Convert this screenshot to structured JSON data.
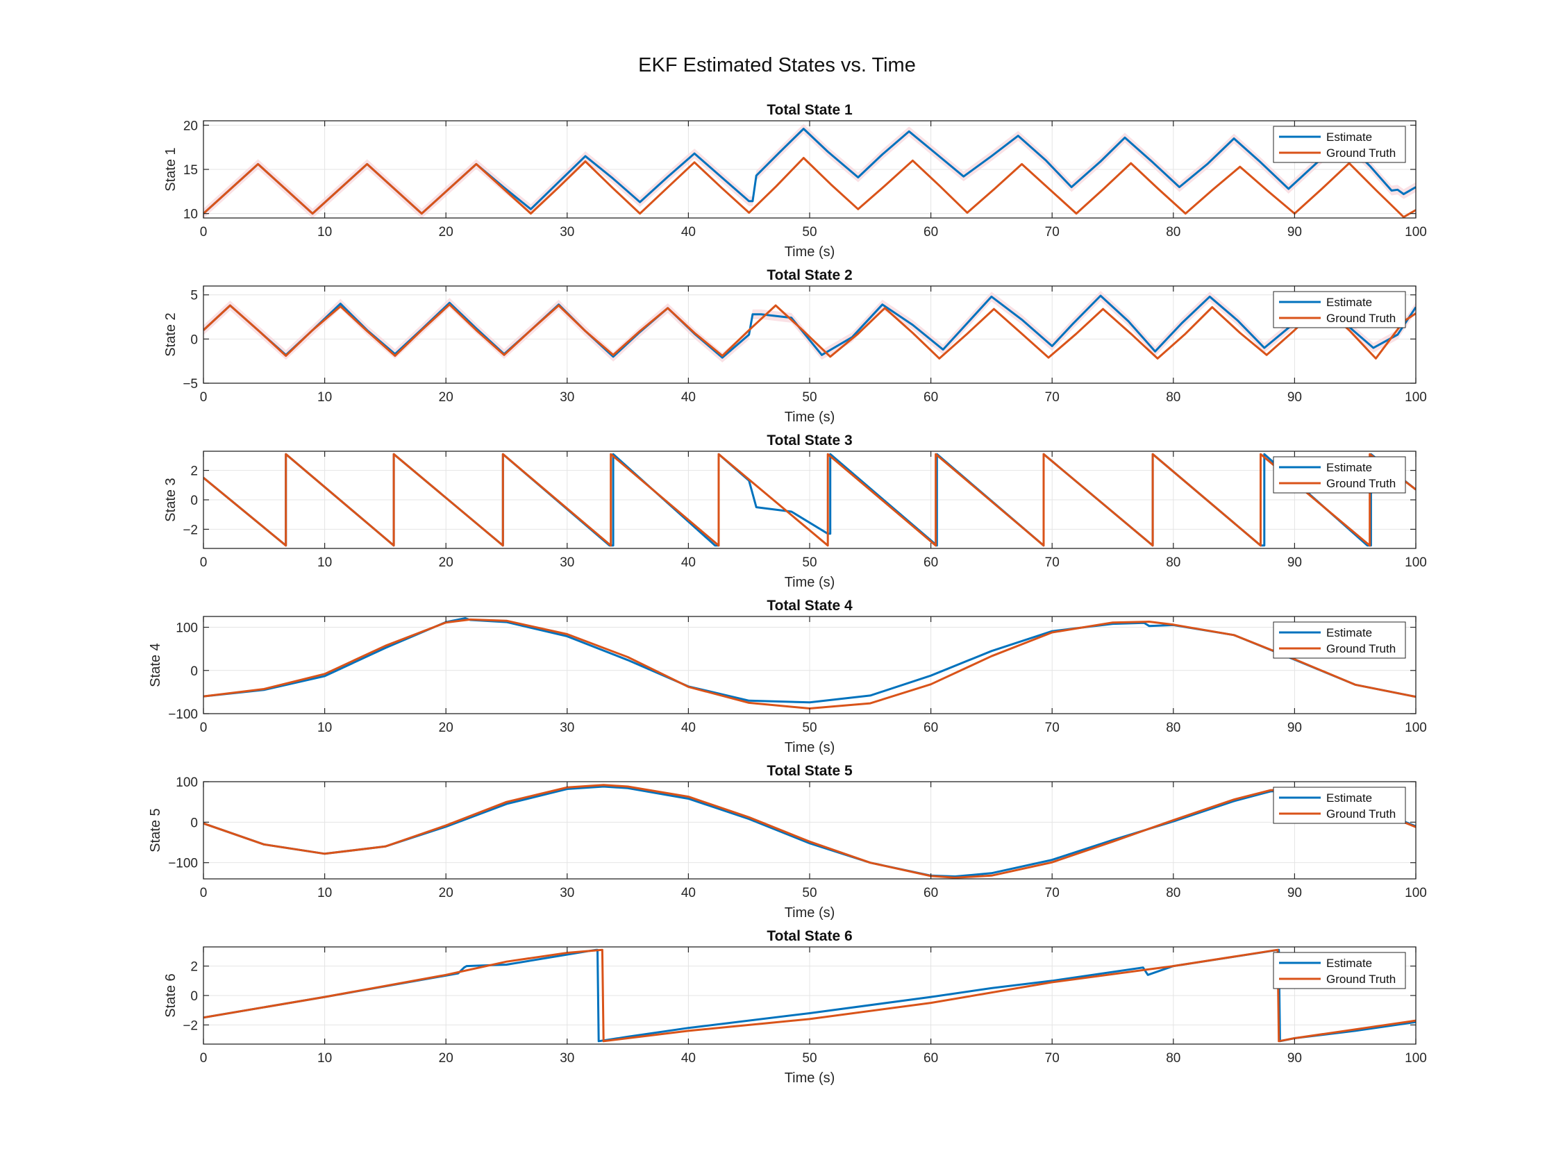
{
  "figure": {
    "title": "EKF Estimated States vs. Time",
    "colors": {
      "estimate": "#0072BD",
      "ground_truth": "#D95319",
      "band": "#F8D7DC",
      "grid": "#E4E4E4",
      "axis": "#262626"
    }
  },
  "chart_data": [
    {
      "type": "line",
      "title": "Total State 1",
      "xlabel": "Time (s)",
      "ylabel": "State 1",
      "xlim": [
        0,
        100
      ],
      "ylim": [
        9.5,
        20.5
      ],
      "xticks": [
        0,
        10,
        20,
        30,
        40,
        50,
        60,
        70,
        80,
        90,
        100
      ],
      "yticks": [
        10,
        15,
        20
      ],
      "grid": true,
      "legend": "top-right",
      "confidence_band": true,
      "series": [
        {
          "name": "Estimate",
          "x": [
            0,
            2.25,
            4.5,
            6.75,
            9,
            11.25,
            13.5,
            15.75,
            18,
            20.25,
            22.5,
            24.75,
            27,
            29.25,
            31.5,
            33.75,
            36,
            38.25,
            40.5,
            42.75,
            45,
            45.3,
            45.6,
            47.5,
            49.5,
            51.5,
            54,
            56,
            58.2,
            60.5,
            62.7,
            65,
            67.2,
            69.5,
            71.6,
            74,
            76,
            78.3,
            80.5,
            82.8,
            85,
            87.2,
            89.5,
            91.8,
            94,
            96.2,
            98,
            98.5,
            99,
            100
          ],
          "y": [
            10,
            12.8,
            15.6,
            12.8,
            10,
            12.8,
            15.6,
            12.8,
            10,
            12.8,
            15.6,
            13,
            10.5,
            13.5,
            16.5,
            14,
            11.3,
            14.1,
            16.8,
            14.1,
            11.4,
            11.4,
            14.3,
            16.9,
            19.6,
            17,
            14.1,
            16.7,
            19.3,
            16.7,
            14.2,
            16.5,
            18.8,
            16,
            13,
            15.9,
            18.6,
            15.8,
            13,
            15.6,
            18.5,
            15.8,
            12.8,
            15.7,
            18.4,
            15.4,
            12.6,
            12.7,
            12.2,
            13
          ]
        },
        {
          "name": "Ground Truth",
          "x": [
            0,
            2.25,
            4.5,
            6.75,
            9,
            11.25,
            13.5,
            15.75,
            18,
            20.25,
            22.5,
            24.75,
            27,
            29.25,
            31.5,
            33.75,
            36,
            38.25,
            40.5,
            42.75,
            45,
            47.25,
            49.5,
            51.75,
            54,
            56.25,
            58.5,
            60.75,
            63,
            65.25,
            67.5,
            69.75,
            72,
            74.25,
            76.5,
            78.75,
            81,
            83.25,
            85.5,
            87.75,
            90,
            92.25,
            94.5,
            96.75,
            99,
            100
          ],
          "y": [
            10,
            12.8,
            15.6,
            12.8,
            10,
            12.8,
            15.6,
            12.8,
            10,
            12.8,
            15.6,
            12.8,
            10,
            12.9,
            15.9,
            12.9,
            10,
            12.9,
            15.8,
            12.9,
            10.1,
            13.1,
            16.3,
            13.3,
            10.5,
            13.2,
            16,
            13.1,
            10.1,
            12.8,
            15.6,
            12.8,
            10,
            12.8,
            15.7,
            12.8,
            10,
            12.7,
            15.3,
            12.6,
            10,
            12.8,
            15.7,
            12.6,
            9.6,
            10.4
          ]
        }
      ]
    },
    {
      "type": "line",
      "title": "Total State 2",
      "xlabel": "Time (s)",
      "ylabel": "State 2",
      "xlim": [
        0,
        100
      ],
      "ylim": [
        -5,
        6
      ],
      "xticks": [
        0,
        10,
        20,
        30,
        40,
        50,
        60,
        70,
        80,
        90,
        100
      ],
      "yticks": [
        -5,
        0,
        5
      ],
      "grid": true,
      "legend": "top-right",
      "confidence_band": true,
      "series": [
        {
          "name": "Estimate",
          "x": [
            0,
            2.2,
            4.5,
            6.8,
            9,
            11.3,
            13.5,
            15.8,
            18,
            20.3,
            22.5,
            24.8,
            27,
            29.3,
            31.5,
            33.8,
            36,
            38.3,
            40.5,
            42.8,
            45,
            45.3,
            46,
            48.5,
            51,
            53.5,
            56,
            58.5,
            61,
            63,
            65,
            67.5,
            70,
            71.7,
            74,
            76.3,
            78.5,
            80.7,
            83,
            85.3,
            87.5,
            89.7,
            92,
            94.3,
            96.5,
            98.5,
            100
          ],
          "y": [
            1,
            3.8,
            1,
            -1.8,
            1,
            4,
            1,
            -1.7,
            1.1,
            4.1,
            1.2,
            -1.7,
            1,
            3.9,
            0.9,
            -2,
            0.8,
            3.5,
            0.6,
            -2.1,
            0.5,
            2.8,
            2.8,
            2.4,
            -1.8,
            0.2,
            3.9,
            1.6,
            -1.2,
            1.8,
            4.8,
            2.2,
            -0.8,
            1.7,
            4.9,
            2,
            -1.4,
            1.8,
            4.8,
            2.1,
            -1,
            1.5,
            4.5,
            1.6,
            -1,
            0.5,
            3.6
          ]
        },
        {
          "name": "Ground Truth",
          "x": [
            0,
            2.2,
            4.5,
            6.8,
            9,
            11.3,
            13.5,
            15.8,
            18,
            20.3,
            22.5,
            24.8,
            27,
            29.3,
            31.5,
            33.8,
            36,
            38.3,
            40.5,
            42.8,
            45,
            47.2,
            49.5,
            51.7,
            54,
            56.2,
            58.5,
            60.7,
            63,
            65.2,
            67.5,
            69.7,
            72,
            74.2,
            76.5,
            78.7,
            81,
            83.2,
            85.5,
            87.7,
            90,
            92.2,
            94.5,
            96.7,
            99,
            100
          ],
          "y": [
            1,
            3.8,
            1,
            -1.9,
            1,
            3.7,
            0.9,
            -1.9,
            1,
            3.9,
            1,
            -1.8,
            1,
            3.8,
            0.9,
            -1.8,
            0.9,
            3.5,
            0.7,
            -1.9,
            1,
            3.8,
            0.9,
            -2,
            0.6,
            3.5,
            0.7,
            -2.2,
            0.6,
            3.4,
            0.6,
            -2.1,
            0.6,
            3.4,
            0.6,
            -2.2,
            0.6,
            3.6,
            0.7,
            -1.8,
            1,
            3.9,
            1,
            -2.2,
            2,
            2.9
          ]
        }
      ]
    },
    {
      "type": "line",
      "title": "Total State 3",
      "xlabel": "Time (s)",
      "ylabel": "State 3",
      "xlim": [
        0,
        100
      ],
      "ylim": [
        -3.3,
        3.3
      ],
      "xticks": [
        0,
        10,
        20,
        30,
        40,
        50,
        60,
        70,
        80,
        90,
        100
      ],
      "yticks": [
        -2,
        0,
        2
      ],
      "grid": true,
      "legend": "top-right",
      "series": [
        {
          "name": "Estimate",
          "x": [
            0,
            6.8,
            6.8,
            15.7,
            15.7,
            24.7,
            24.7,
            33.5,
            33.5,
            33.8,
            33.8,
            42.2,
            42.2,
            42.5,
            42.5,
            45,
            45.6,
            48.5,
            51.5,
            51.5,
            51.7,
            51.7,
            60.5,
            60.5,
            69.3,
            69.3,
            78.3,
            78.3,
            87.2,
            87.2,
            87.5,
            87.5,
            96,
            96,
            96.3,
            96.3,
            100
          ],
          "y": [
            1.5,
            -3.1,
            3.1,
            -3.1,
            3.1,
            -3.1,
            3.1,
            -3.1,
            -3.1,
            -3.1,
            3.1,
            -3.1,
            -3.1,
            -3.1,
            3.1,
            1.3,
            -0.5,
            -0.8,
            -2.3,
            -2.3,
            -2.3,
            3.1,
            -3.1,
            3.1,
            -3.1,
            3.1,
            -3.1,
            3.1,
            -3.1,
            -3.1,
            -3.1,
            3.1,
            -3.1,
            -3.1,
            -3.1,
            3.1,
            0.7
          ]
        },
        {
          "name": "Ground Truth",
          "x": [
            0,
            6.8,
            6.8,
            15.7,
            15.7,
            24.7,
            24.7,
            33.6,
            33.6,
            42.5,
            42.5,
            51.5,
            51.5,
            60.4,
            60.4,
            69.3,
            69.3,
            78.3,
            78.3,
            87.2,
            87.2,
            96.2,
            96.2,
            100
          ],
          "y": [
            1.5,
            -3.1,
            3.1,
            -3.1,
            3.1,
            -3.1,
            3.1,
            -3.1,
            3.1,
            -3.1,
            3.1,
            -3.1,
            3.1,
            -3.1,
            3.1,
            -3.1,
            3.1,
            -3.1,
            3.1,
            -3.1,
            3.1,
            -3.1,
            3.1,
            0.7
          ]
        }
      ]
    },
    {
      "type": "line",
      "title": "Total State 4",
      "xlabel": "Time (s)",
      "ylabel": "State 4",
      "xlim": [
        0,
        100
      ],
      "ylim": [
        -100,
        125
      ],
      "xticks": [
        0,
        10,
        20,
        30,
        40,
        50,
        60,
        70,
        80,
        90,
        100
      ],
      "yticks": [
        -100,
        0,
        100
      ],
      "grid": true,
      "legend": "top-right",
      "series": [
        {
          "name": "Estimate",
          "x": [
            0,
            5,
            10,
            15,
            20,
            21.6,
            22,
            25,
            30,
            35,
            40,
            45,
            50,
            55,
            60,
            65,
            70,
            75,
            77.6,
            78,
            80,
            85,
            90,
            95,
            100
          ],
          "y": [
            -60,
            -45,
            -13,
            52,
            112,
            121,
            117,
            112,
            79,
            24,
            -37,
            -70,
            -74,
            -58,
            -12,
            45,
            91,
            108,
            110,
            103,
            105,
            82,
            25,
            -33,
            -61
          ]
        },
        {
          "name": "Ground Truth",
          "x": [
            0,
            5,
            10,
            15,
            20,
            22,
            25,
            30,
            35,
            40,
            45,
            50,
            55,
            60,
            65,
            70,
            75,
            78,
            80,
            85,
            90,
            95,
            100
          ],
          "y": [
            -60,
            -43,
            -8,
            57,
            111,
            118,
            115,
            84,
            31,
            -38,
            -75,
            -88,
            -76,
            -32,
            33,
            88,
            111,
            113,
            106,
            82,
            26,
            -33,
            -61
          ]
        }
      ]
    },
    {
      "type": "line",
      "title": "Total State 5",
      "xlabel": "Time (s)",
      "ylabel": "State 5",
      "xlim": [
        0,
        100
      ],
      "ylim": [
        -140,
        100
      ],
      "xticks": [
        0,
        10,
        20,
        30,
        40,
        50,
        60,
        70,
        80,
        90,
        100
      ],
      "yticks": [
        -100,
        0,
        100
      ],
      "grid": true,
      "legend": "top-right",
      "series": [
        {
          "name": "Estimate",
          "x": [
            0,
            5,
            10,
            15,
            20,
            25,
            30,
            33,
            35,
            40,
            45,
            50,
            55,
            60,
            62,
            65,
            70,
            75,
            80,
            85,
            88,
            90,
            95,
            100
          ],
          "y": [
            -3,
            -55,
            -78,
            -60,
            -11,
            45,
            82,
            88,
            84,
            58,
            8,
            -52,
            -100,
            -132,
            -134,
            -126,
            -93,
            -44,
            2,
            52,
            76,
            80,
            50,
            -10
          ]
        },
        {
          "name": "Ground Truth",
          "x": [
            0,
            5,
            10,
            15,
            20,
            25,
            30,
            33,
            35,
            40,
            45,
            50,
            55,
            60,
            62,
            65,
            70,
            75,
            80,
            85,
            88,
            90,
            95,
            100
          ],
          "y": [
            -3,
            -55,
            -78,
            -60,
            -8,
            50,
            86,
            92,
            88,
            63,
            12,
            -48,
            -100,
            -133,
            -137,
            -132,
            -99,
            -48,
            5,
            56,
            79,
            80,
            48,
            -12
          ]
        }
      ]
    },
    {
      "type": "line",
      "title": "Total State 6",
      "xlabel": "Time (s)",
      "ylabel": "State 6",
      "xlim": [
        0,
        100
      ],
      "ylim": [
        -3.3,
        3.3
      ],
      "xticks": [
        0,
        10,
        20,
        30,
        40,
        50,
        60,
        70,
        80,
        90,
        100
      ],
      "yticks": [
        -2,
        0,
        2
      ],
      "grid": true,
      "legend": "top-right",
      "series": [
        {
          "name": "Estimate",
          "x": [
            0,
            10,
            21,
            21.5,
            21.7,
            25,
            32.4,
            32.5,
            32.6,
            35,
            40,
            50,
            60,
            65,
            70,
            77.5,
            77.9,
            80,
            88.7,
            88.8,
            90,
            95,
            100
          ],
          "y": [
            -1.5,
            -0.1,
            1.5,
            1.9,
            2.0,
            2.1,
            3.1,
            3.1,
            -3.1,
            -2.8,
            -2.2,
            -1.2,
            -0.1,
            0.5,
            1.0,
            1.9,
            1.4,
            2.0,
            3.1,
            -3.1,
            -2.9,
            -2.4,
            -1.8
          ]
        },
        {
          "name": "Ground Truth",
          "x": [
            0,
            10,
            20,
            25,
            30,
            32.9,
            33,
            35,
            40,
            50,
            60,
            70,
            80,
            88.6,
            88.7,
            90,
            95,
            100
          ],
          "y": [
            -1.5,
            -0.1,
            1.4,
            2.3,
            2.9,
            3.1,
            -3.1,
            -2.9,
            -2.4,
            -1.6,
            -0.5,
            0.9,
            2.0,
            3.1,
            -3.1,
            -2.9,
            -2.3,
            -1.7
          ]
        }
      ]
    }
  ]
}
